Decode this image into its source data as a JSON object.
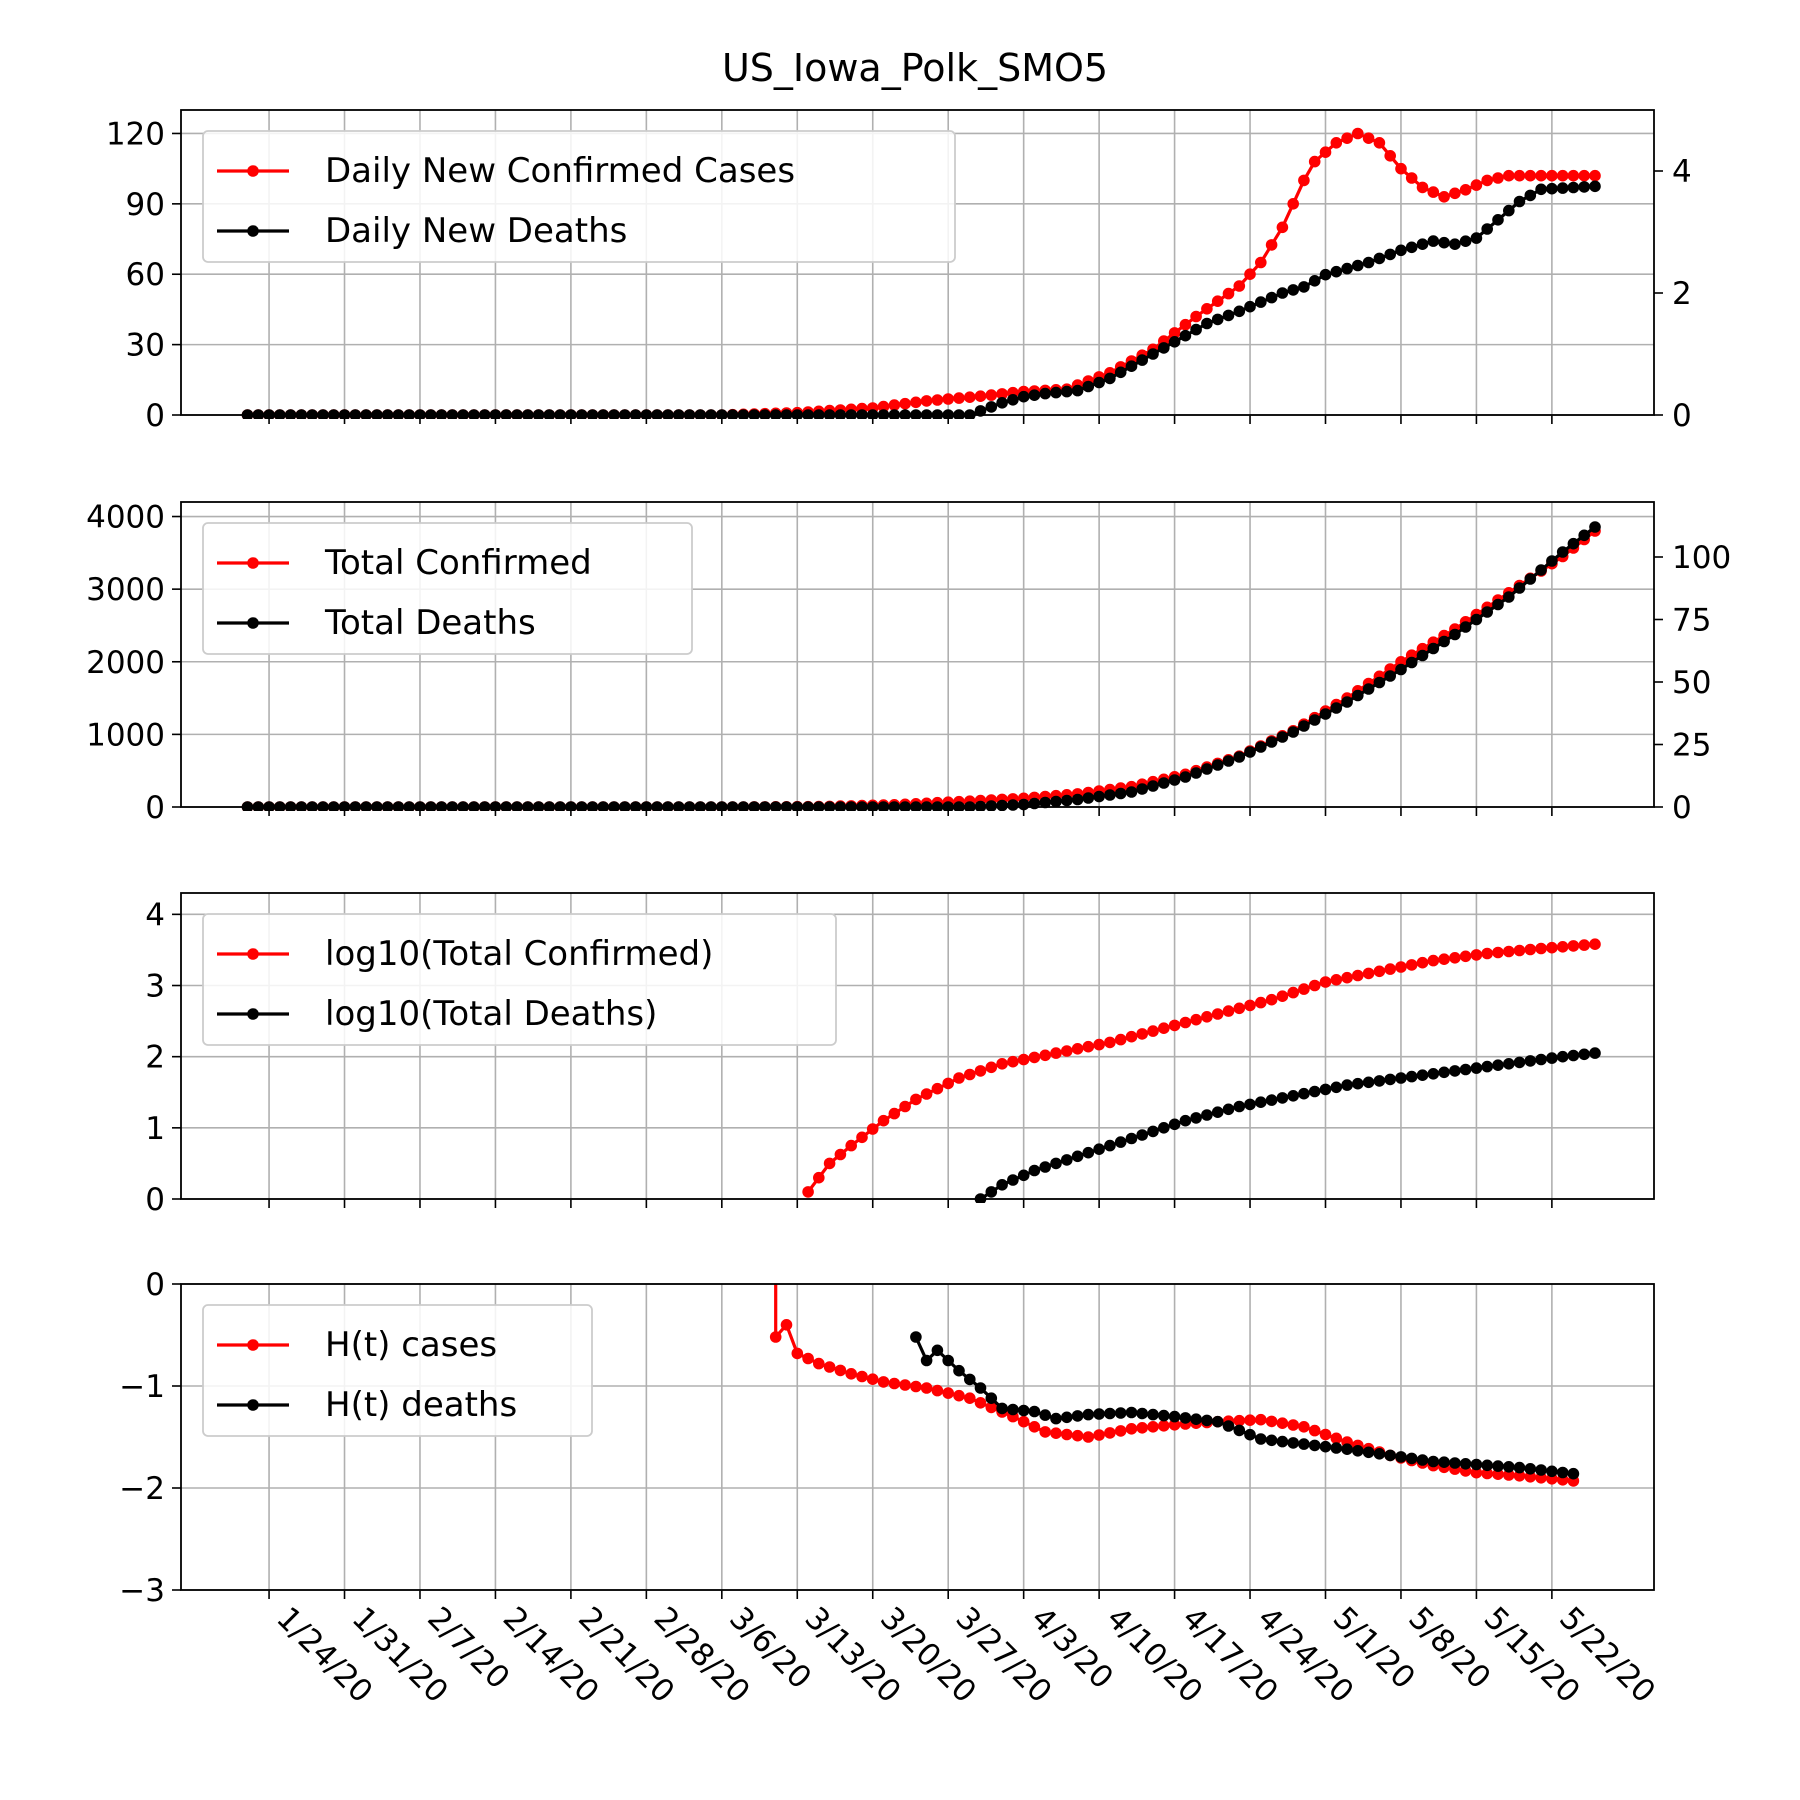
{
  "figure_title": "US_Iowa_Polk_SMO5",
  "colors": {
    "red": "#ff0000",
    "black": "#000000",
    "grid": "#b0b0b0"
  },
  "x_tick_labels": [
    "1/24/20",
    "1/31/20",
    "2/7/20",
    "2/14/20",
    "2/21/20",
    "2/28/20",
    "3/6/20",
    "3/13/20",
    "3/20/20",
    "3/27/20",
    "4/3/20",
    "4/10/20",
    "4/17/20",
    "4/24/20",
    "5/1/20",
    "5/8/20",
    "5/15/20",
    "5/22/20"
  ],
  "chart_data": [
    {
      "type": "line",
      "x_range": [
        "2020-01-22",
        "2020-05-26"
      ],
      "ylim": [
        0,
        130
      ],
      "y2lim": [
        0,
        5
      ],
      "yticks": [
        0,
        30,
        60,
        90,
        120
      ],
      "y2ticks": [
        0,
        2,
        4
      ],
      "legend_position": "top-left",
      "grid": true,
      "series": [
        {
          "name": "Daily New Confirmed Cases",
          "color": "#ff0000",
          "axis": "left",
          "points": [
            [
              "2020-01-22",
              0
            ],
            [
              "2020-03-06",
              0
            ],
            [
              "2020-03-13",
              1
            ],
            [
              "2020-03-20",
              3
            ],
            [
              "2020-03-25",
              6
            ],
            [
              "2020-03-30",
              8
            ],
            [
              "2020-04-03",
              10
            ],
            [
              "2020-04-07",
              11
            ],
            [
              "2020-04-11",
              18
            ],
            [
              "2020-04-15",
              28
            ],
            [
              "2020-04-19",
              42
            ],
            [
              "2020-04-23",
              55
            ],
            [
              "2020-04-25",
              65
            ],
            [
              "2020-04-27",
              80
            ],
            [
              "2020-04-28",
              90
            ],
            [
              "2020-04-29",
              100
            ],
            [
              "2020-04-30",
              108
            ],
            [
              "2020-05-02",
              116
            ],
            [
              "2020-05-04",
              120
            ],
            [
              "2020-05-06",
              116
            ],
            [
              "2020-05-08",
              105
            ],
            [
              "2020-05-10",
              97
            ],
            [
              "2020-05-12",
              93
            ],
            [
              "2020-05-14",
              96
            ],
            [
              "2020-05-16",
              100
            ],
            [
              "2020-05-18",
              102
            ],
            [
              "2020-05-26",
              102
            ]
          ]
        },
        {
          "name": "Daily New Deaths",
          "color": "#000000",
          "axis": "right",
          "points": [
            [
              "2020-01-22",
              0
            ],
            [
              "2020-03-29",
              0
            ],
            [
              "2020-04-01",
              0.2
            ],
            [
              "2020-04-03",
              0.3
            ],
            [
              "2020-04-05",
              0.35
            ],
            [
              "2020-04-08",
              0.4
            ],
            [
              "2020-04-11",
              0.6
            ],
            [
              "2020-04-14",
              0.9
            ],
            [
              "2020-04-17",
              1.2
            ],
            [
              "2020-04-20",
              1.5
            ],
            [
              "2020-04-23",
              1.7
            ],
            [
              "2020-04-25",
              1.85
            ],
            [
              "2020-04-27",
              2.0
            ],
            [
              "2020-04-29",
              2.1
            ],
            [
              "2020-05-01",
              2.3
            ],
            [
              "2020-05-03",
              2.4
            ],
            [
              "2020-05-05",
              2.5
            ],
            [
              "2020-05-08",
              2.7
            ],
            [
              "2020-05-11",
              2.85
            ],
            [
              "2020-05-13",
              2.8
            ],
            [
              "2020-05-15",
              2.9
            ],
            [
              "2020-05-17",
              3.2
            ],
            [
              "2020-05-19",
              3.5
            ],
            [
              "2020-05-21",
              3.7
            ],
            [
              "2020-05-26",
              3.75
            ]
          ]
        }
      ]
    },
    {
      "type": "line",
      "x_range": [
        "2020-01-22",
        "2020-05-26"
      ],
      "ylim": [
        0,
        4200
      ],
      "y2lim": [
        0,
        122
      ],
      "yticks": [
        0,
        1000,
        2000,
        3000,
        4000
      ],
      "y2ticks": [
        0,
        25,
        50,
        75,
        100
      ],
      "legend_position": "top-left",
      "grid": true,
      "series": [
        {
          "name": "Total Confirmed",
          "color": "#ff0000",
          "axis": "left",
          "points": [
            [
              "2020-01-22",
              0
            ],
            [
              "2020-03-08",
              0
            ],
            [
              "2020-03-15",
              5
            ],
            [
              "2020-03-22",
              30
            ],
            [
              "2020-03-29",
              80
            ],
            [
              "2020-04-03",
              120
            ],
            [
              "2020-04-08",
              180
            ],
            [
              "2020-04-13",
              280
            ],
            [
              "2020-04-18",
              450
            ],
            [
              "2020-04-23",
              700
            ],
            [
              "2020-04-28",
              1050
            ],
            [
              "2020-05-03",
              1500
            ],
            [
              "2020-05-08",
              2000
            ],
            [
              "2020-05-13",
              2450
            ],
            [
              "2020-05-18",
              2950
            ],
            [
              "2020-05-23",
              3450
            ],
            [
              "2020-05-26",
              3800
            ]
          ]
        },
        {
          "name": "Total Deaths",
          "color": "#000000",
          "axis": "right",
          "points": [
            [
              "2020-01-22",
              0
            ],
            [
              "2020-03-29",
              0
            ],
            [
              "2020-04-03",
              1
            ],
            [
              "2020-04-08",
              3
            ],
            [
              "2020-04-13",
              6
            ],
            [
              "2020-04-18",
              12
            ],
            [
              "2020-04-23",
              20
            ],
            [
              "2020-04-28",
              30
            ],
            [
              "2020-05-03",
              42
            ],
            [
              "2020-05-08",
              55
            ],
            [
              "2020-05-13",
              69
            ],
            [
              "2020-05-18",
              84
            ],
            [
              "2020-05-23",
              102
            ],
            [
              "2020-05-26",
              112
            ]
          ]
        }
      ]
    },
    {
      "type": "line",
      "x_range": [
        "2020-01-22",
        "2020-05-26"
      ],
      "ylim": [
        0,
        4.3
      ],
      "yticks": [
        0,
        1,
        2,
        3,
        4
      ],
      "legend_position": "top-left",
      "grid": true,
      "series": [
        {
          "name": "log10(Total Confirmed)",
          "color": "#ff0000",
          "axis": "left",
          "points": [
            [
              "2020-03-14",
              0.1
            ],
            [
              "2020-03-16",
              0.5
            ],
            [
              "2020-03-18",
              0.75
            ],
            [
              "2020-03-21",
              1.1
            ],
            [
              "2020-03-24",
              1.4
            ],
            [
              "2020-03-28",
              1.7
            ],
            [
              "2020-04-01",
              1.9
            ],
            [
              "2020-04-06",
              2.05
            ],
            [
              "2020-04-11",
              2.2
            ],
            [
              "2020-04-16",
              2.4
            ],
            [
              "2020-04-21",
              2.6
            ],
            [
              "2020-04-26",
              2.8
            ],
            [
              "2020-05-01",
              3.05
            ],
            [
              "2020-05-06",
              3.2
            ],
            [
              "2020-05-11",
              3.35
            ],
            [
              "2020-05-16",
              3.45
            ],
            [
              "2020-05-21",
              3.52
            ],
            [
              "2020-05-26",
              3.58
            ]
          ]
        },
        {
          "name": "log10(Total Deaths)",
          "color": "#000000",
          "axis": "left",
          "points": [
            [
              "2020-03-30",
              0.0
            ],
            [
              "2020-04-01",
              0.2
            ],
            [
              "2020-04-04",
              0.4
            ],
            [
              "2020-04-08",
              0.6
            ],
            [
              "2020-04-13",
              0.85
            ],
            [
              "2020-04-18",
              1.1
            ],
            [
              "2020-04-23",
              1.3
            ],
            [
              "2020-04-28",
              1.45
            ],
            [
              "2020-05-03",
              1.6
            ],
            [
              "2020-05-08",
              1.7
            ],
            [
              "2020-05-13",
              1.8
            ],
            [
              "2020-05-18",
              1.9
            ],
            [
              "2020-05-23",
              2.0
            ],
            [
              "2020-05-26",
              2.05
            ]
          ]
        }
      ]
    },
    {
      "type": "line",
      "x_range": [
        "2020-01-22",
        "2020-05-26"
      ],
      "ylim": [
        -3,
        0
      ],
      "yticks": [
        -3,
        -2,
        -1,
        0
      ],
      "legend_position": "top-left",
      "grid": true,
      "series": [
        {
          "name": "H(t) cases",
          "color": "#ff0000",
          "axis": "left",
          "points": [
            [
              "2020-03-11",
              0.0
            ],
            [
              "2020-03-11",
              -0.52
            ],
            [
              "2020-03-12",
              -0.4
            ],
            [
              "2020-03-13",
              -0.68
            ],
            [
              "2020-03-15",
              -0.78
            ],
            [
              "2020-03-18",
              -0.88
            ],
            [
              "2020-03-21",
              -0.96
            ],
            [
              "2020-03-25",
              -1.02
            ],
            [
              "2020-03-29",
              -1.12
            ],
            [
              "2020-04-02",
              -1.3
            ],
            [
              "2020-04-05",
              -1.45
            ],
            [
              "2020-04-09",
              -1.5
            ],
            [
              "2020-04-13",
              -1.42
            ],
            [
              "2020-04-17",
              -1.38
            ],
            [
              "2020-04-21",
              -1.35
            ],
            [
              "2020-04-25",
              -1.33
            ],
            [
              "2020-04-29",
              -1.4
            ],
            [
              "2020-05-03",
              -1.55
            ],
            [
              "2020-05-07",
              -1.68
            ],
            [
              "2020-05-11",
              -1.78
            ],
            [
              "2020-05-15",
              -1.85
            ],
            [
              "2020-05-19",
              -1.88
            ],
            [
              "2020-05-24",
              -1.93
            ]
          ]
        },
        {
          "name": "H(t) deaths",
          "color": "#000000",
          "axis": "left",
          "points": [
            [
              "2020-03-24",
              -0.52
            ],
            [
              "2020-03-25",
              -0.75
            ],
            [
              "2020-03-26",
              -0.65
            ],
            [
              "2020-03-28",
              -0.85
            ],
            [
              "2020-03-30",
              -1.02
            ],
            [
              "2020-04-01",
              -1.22
            ],
            [
              "2020-04-04",
              -1.25
            ],
            [
              "2020-04-06",
              -1.32
            ],
            [
              "2020-04-09",
              -1.28
            ],
            [
              "2020-04-13",
              -1.26
            ],
            [
              "2020-04-17",
              -1.3
            ],
            [
              "2020-04-21",
              -1.35
            ],
            [
              "2020-04-25",
              -1.52
            ],
            [
              "2020-04-29",
              -1.57
            ],
            [
              "2020-05-03",
              -1.62
            ],
            [
              "2020-05-07",
              -1.68
            ],
            [
              "2020-05-11",
              -1.74
            ],
            [
              "2020-05-15",
              -1.77
            ],
            [
              "2020-05-19",
              -1.8
            ],
            [
              "2020-05-24",
              -1.86
            ]
          ]
        }
      ]
    }
  ]
}
